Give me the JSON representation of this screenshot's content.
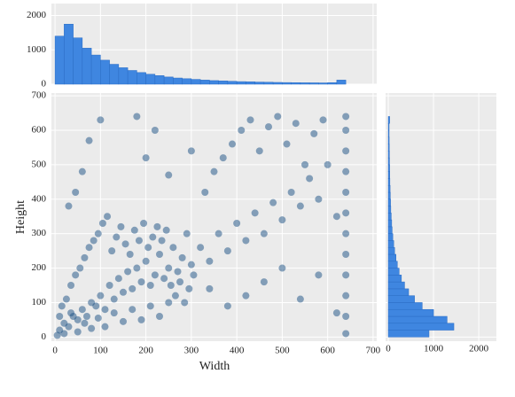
{
  "chart_data": [
    {
      "type": "scatter",
      "xlabel": "Width",
      "ylabel": "Height",
      "color": "#1a5083",
      "xlim": [
        -8,
        708
      ],
      "ylim": [
        -12,
        708
      ],
      "xticks": [
        0,
        100,
        200,
        300,
        400,
        500,
        600,
        700
      ],
      "yticks": [
        0,
        100,
        200,
        300,
        400,
        500,
        600,
        700
      ],
      "grid": true,
      "x": [
        10,
        20,
        30,
        40,
        50,
        60,
        70,
        80,
        90,
        100,
        110,
        120,
        130,
        140,
        150,
        160,
        170,
        180,
        190,
        200,
        210,
        220,
        230,
        240,
        250,
        260,
        270,
        280,
        290,
        300,
        15,
        25,
        35,
        45,
        55,
        65,
        75,
        85,
        95,
        105,
        115,
        125,
        135,
        145,
        155,
        165,
        175,
        185,
        195,
        205,
        215,
        225,
        235,
        245,
        255,
        265,
        275,
        285,
        295,
        305,
        320,
        340,
        360,
        380,
        400,
        420,
        440,
        460,
        480,
        500,
        520,
        540,
        560,
        580,
        600,
        620,
        330,
        350,
        370,
        390,
        410,
        430,
        450,
        470,
        490,
        510,
        530,
        550,
        570,
        590,
        75,
        100,
        60,
        45,
        30,
        200,
        220,
        250,
        300,
        180,
        340,
        380,
        420,
        460,
        500,
        540,
        580,
        620,
        640,
        640,
        640,
        640,
        640,
        640,
        640,
        640,
        640,
        640,
        640,
        640,
        5,
        10,
        20,
        35,
        50,
        65,
        80,
        95,
        110,
        130,
        150,
        170,
        190,
        210,
        230,
        250
      ],
      "y": [
        20,
        40,
        30,
        60,
        50,
        80,
        60,
        100,
        90,
        120,
        80,
        150,
        110,
        170,
        130,
        190,
        140,
        200,
        160,
        220,
        150,
        180,
        240,
        170,
        200,
        260,
        190,
        230,
        300,
        210,
        90,
        110,
        150,
        180,
        200,
        230,
        260,
        280,
        300,
        330,
        350,
        250,
        290,
        320,
        270,
        240,
        310,
        280,
        330,
        260,
        290,
        320,
        280,
        310,
        150,
        120,
        160,
        100,
        140,
        180,
        260,
        220,
        300,
        250,
        330,
        280,
        360,
        300,
        390,
        340,
        420,
        380,
        460,
        400,
        500,
        350,
        420,
        480,
        520,
        560,
        600,
        630,
        540,
        610,
        640,
        560,
        620,
        500,
        590,
        630,
        570,
        630,
        480,
        420,
        380,
        520,
        600,
        470,
        540,
        640,
        140,
        90,
        120,
        160,
        200,
        110,
        180,
        70,
        10,
        60,
        120,
        180,
        240,
        300,
        360,
        420,
        480,
        540,
        600,
        640,
        5,
        60,
        10,
        70,
        15,
        40,
        25,
        55,
        30,
        70,
        45,
        80,
        50,
        90,
        60,
        100
      ]
    },
    {
      "type": "histogram",
      "orientation": "vertical",
      "color": "#3f86e0",
      "ylim": [
        0,
        2350
      ],
      "yticks": [
        0,
        1000,
        2000
      ],
      "grid": true,
      "bins": [
        0,
        20,
        40,
        60,
        80,
        100,
        120,
        140,
        160,
        180,
        200,
        220,
        240,
        260,
        280,
        300,
        320,
        340,
        360,
        380,
        400,
        420,
        440,
        460,
        480,
        500,
        520,
        540,
        560,
        580,
        600,
        620,
        640
      ],
      "counts": [
        1400,
        1750,
        1350,
        1050,
        850,
        700,
        580,
        480,
        400,
        340,
        290,
        250,
        210,
        180,
        160,
        140,
        120,
        105,
        95,
        85,
        75,
        70,
        62,
        58,
        52,
        48,
        45,
        42,
        40,
        38,
        45,
        120
      ]
    },
    {
      "type": "histogram",
      "orientation": "horizontal",
      "color": "#3f86e0",
      "xlim": [
        -60,
        2390
      ],
      "xticks": [
        0,
        1000,
        2000
      ],
      "grid": true,
      "bins": [
        0,
        20,
        40,
        60,
        80,
        100,
        120,
        140,
        160,
        180,
        200,
        220,
        240,
        260,
        280,
        300,
        320,
        340,
        360,
        380,
        400,
        420,
        440,
        460,
        480,
        500,
        520,
        540,
        560,
        580,
        600,
        620,
        640
      ],
      "counts": [
        900,
        1450,
        1300,
        1000,
        750,
        580,
        450,
        360,
        290,
        240,
        200,
        170,
        140,
        120,
        100,
        85,
        75,
        65,
        55,
        50,
        45,
        40,
        35,
        32,
        30,
        27,
        25,
        22,
        20,
        18,
        18,
        30
      ]
    }
  ]
}
